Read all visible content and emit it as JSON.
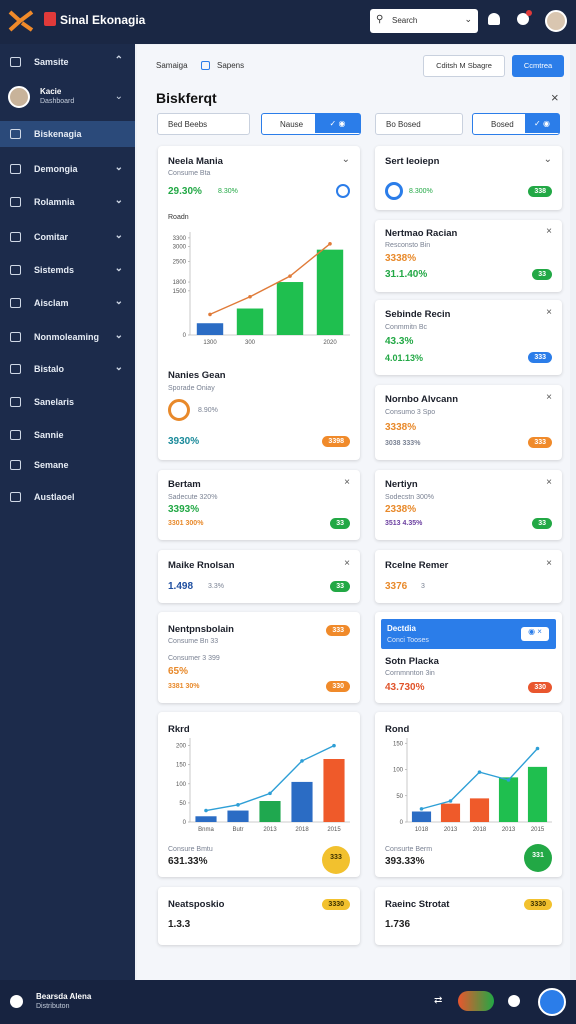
{
  "app": {
    "title": "Sinal Ekonagia",
    "search": "Search"
  },
  "sidebar": {
    "top": "Samsite",
    "profile": {
      "name": "Kacie",
      "role": "Dashboard"
    },
    "items": [
      "Biskenagia",
      "Demongia",
      "Rolamnia",
      "Comitar",
      "Sistemds",
      "Aisclam",
      "Nonmoleaming",
      "Bistalo",
      "Sanelaris",
      "Sannie",
      "Semane",
      "Austlaoel"
    ]
  },
  "footer": {
    "name": "Bearsda Alena",
    "role": "Distributon"
  },
  "breadcrumb": [
    "Samaiga",
    "Sapens"
  ],
  "buttons": [
    "Cditsh M Sbagre",
    "Ccmtrea"
  ],
  "page_title": "Biskferqt",
  "filters": [
    "Bed Beebs",
    "Nause",
    "Bo Bosed",
    "Bosed"
  ],
  "left_cards": [
    {
      "title": "Neela Mania",
      "subtitle": "Consume Bta",
      "value": "29.30%",
      "value2": "8.30%",
      "chart": {
        "type": "bar",
        "label": "Roadn",
        "categories": [
          "1300",
          "300",
          null,
          "2020"
        ],
        "values": [
          400,
          900,
          1800,
          2900
        ],
        "colors": [
          "#2b6cc4",
          "#1fbf4f",
          "#1fbf4f",
          "#1fbf4f"
        ],
        "line": [
          700,
          1300,
          2000,
          3100
        ],
        "line_color": "#e07b39",
        "ylim": [
          0,
          3500
        ],
        "yticks": [
          0,
          1500,
          1800,
          2500,
          3000,
          3300
        ]
      },
      "section": {
        "title": "Nanies Gean",
        "subtitle": "Sporade Oniay",
        "icon_value": "8.90%",
        "value": "3930%",
        "badge": "3398"
      }
    },
    {
      "title": "Bertam",
      "subtitle": "Sadecute 320%",
      "value": "3393%",
      "value2": "3301 300%",
      "badge": "33"
    },
    {
      "title": "Maike Rnolsan",
      "value": "1.498",
      "value2": "3.3%",
      "badge": "33"
    },
    {
      "title": "Nentpnsbolain",
      "subtitle": "Consume Bn 33",
      "badge": "333",
      "subtitle2": "Consumer 3 399",
      "value": "65%",
      "value2": "3381 30%",
      "badge2": "330"
    },
    {
      "title": "Rkrd",
      "chart": {
        "type": "bar",
        "categories": [
          "Bnma",
          "Butr",
          "2013",
          "2018",
          "2015"
        ],
        "values": [
          15,
          30,
          55,
          105,
          165
        ],
        "colors": [
          "#2b6cc4",
          "#2b6cc4",
          "#1fa84f",
          "#2b6cc4",
          "#ef5a2a"
        ],
        "line": [
          30,
          45,
          75,
          160,
          200
        ],
        "line_color": "#2e9fd6",
        "ylim": [
          0,
          220
        ],
        "yticks": [
          0,
          50,
          100,
          150,
          200
        ]
      },
      "subtitle": "Consure Bmtu",
      "value": "631.33%",
      "badge": "333"
    },
    {
      "title": "Neatsposkio",
      "value": "1.3.3",
      "badge": "3330"
    }
  ],
  "right_cards": [
    {
      "title": "Sert Ieoiepn",
      "icon_value": "8.300%",
      "badge": "338"
    },
    {
      "title": "Nertmao Racian",
      "subtitle": "Resconsto Bin",
      "value": "3338%",
      "value2": "31.1.40%",
      "badge": "33"
    },
    {
      "title": "Sebinde Recin",
      "subtitle": "Conmmitn Bc",
      "value": "43.3%",
      "value2": "4.01.13%",
      "badge": "333"
    },
    {
      "title": "Nornbo Alvcann",
      "subtitle": "Consumo 3 Spo",
      "value": "3338%",
      "value2": "3038 333%",
      "badge": "333"
    },
    {
      "title": "Nertiyn",
      "subtitle": "Sodecstn 300%",
      "value": "2338%",
      "value2": "3513 4.35%",
      "badge": "33"
    },
    {
      "title": "Rcelne Remer",
      "value": "3376",
      "value2": "3"
    },
    {
      "header": "Dectdia",
      "header_sub": "Conci Tooses",
      "title": "Sotn Placka",
      "subtitle": "Cornmnnton 3in",
      "value": "43.730%",
      "badge": "330"
    },
    {
      "title": "Rond",
      "chart": {
        "type": "bar",
        "categories": [
          "1018",
          "2013",
          "2018",
          "2013",
          "2015"
        ],
        "values": [
          20,
          35,
          45,
          85,
          105
        ],
        "colors": [
          "#2b6cc4",
          "#ef5a2a",
          "#ef5a2a",
          "#1fbf4f",
          "#1fbf4f"
        ],
        "line": [
          25,
          40,
          95,
          80,
          140
        ],
        "line_color": "#2e9fd6",
        "ylim": [
          0,
          160
        ],
        "yticks": [
          0,
          50,
          100,
          150
        ]
      },
      "subtitle": "Consurte Berm",
      "value": "393.33%",
      "badge": "331"
    },
    {
      "title": "Raeinc Strotat",
      "value": "1.736",
      "badge": "3330"
    }
  ]
}
